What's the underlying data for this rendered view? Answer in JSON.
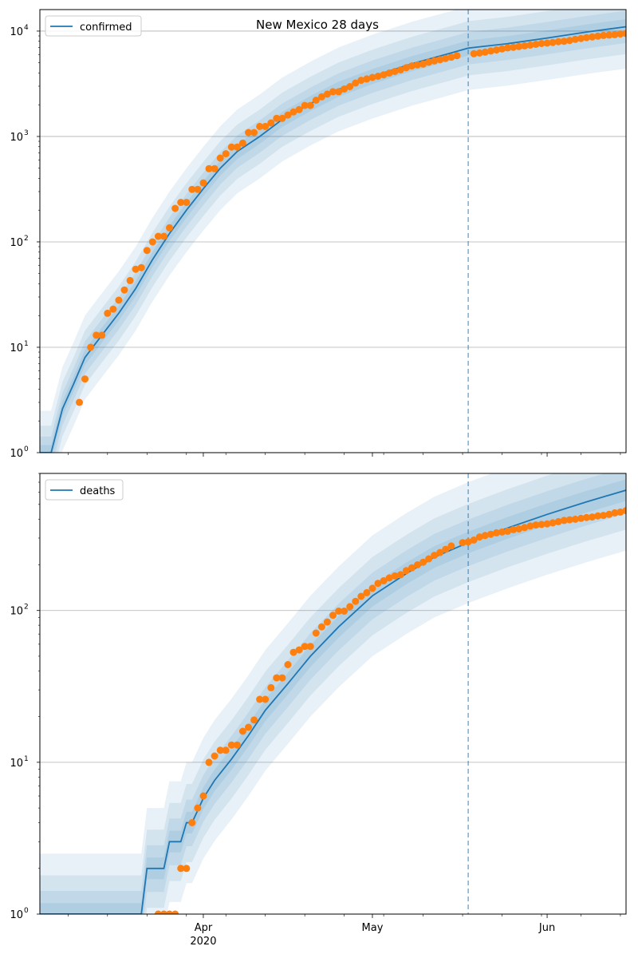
{
  "figure": {
    "title": "New Mexico 28 days"
  },
  "colors": {
    "model_line": "#1f77b4",
    "band": "#1f77b4",
    "observed_points": "#ff7f0e",
    "divider": "#1f77b4",
    "grid": "#b0b0b0"
  },
  "chart_data": [
    {
      "type": "line",
      "name": "confirmed",
      "scale": "log",
      "ylim": [
        1,
        16000
      ],
      "yticks": [
        1,
        10,
        100,
        1000,
        10000
      ],
      "ytick_labels": [
        {
          "base": "10",
          "exp": "0"
        },
        {
          "base": "10",
          "exp": "1"
        },
        {
          "base": "10",
          "exp": "2"
        },
        {
          "base": "10",
          "exp": "3"
        },
        {
          "base": "10",
          "exp": "4"
        }
      ],
      "grid": "y",
      "legend": {
        "label": "confirmed",
        "placement": "upper-left"
      },
      "xlim": [
        "2020-03-03",
        "2020-06-15"
      ],
      "xticks": [
        {
          "date": "2020-04-01",
          "label": "Apr",
          "sublabel": "2020"
        },
        {
          "date": "2020-05-01",
          "label": "May",
          "sublabel": ""
        },
        {
          "date": "2020-06-01",
          "label": "Jun",
          "sublabel": ""
        }
      ],
      "forecast_start": "2020-05-18",
      "model_line": [
        [
          "2020-03-03",
          1
        ],
        [
          "2020-03-05",
          1
        ],
        [
          "2020-03-07",
          2.6
        ],
        [
          "2020-03-09",
          4.5
        ],
        [
          "2020-03-11",
          8
        ],
        [
          "2020-03-14",
          13
        ],
        [
          "2020-03-17",
          21
        ],
        [
          "2020-03-20",
          36
        ],
        [
          "2020-03-23",
          68
        ],
        [
          "2020-03-26",
          120
        ],
        [
          "2020-03-29",
          200
        ],
        [
          "2020-04-01",
          320
        ],
        [
          "2020-04-04",
          500
        ],
        [
          "2020-04-07",
          720
        ],
        [
          "2020-04-11",
          1000
        ],
        [
          "2020-04-15",
          1450
        ],
        [
          "2020-04-20",
          2050
        ],
        [
          "2020-04-25",
          2800
        ],
        [
          "2020-05-01",
          3700
        ],
        [
          "2020-05-08",
          4900
        ],
        [
          "2020-05-14",
          6000
        ],
        [
          "2020-05-18",
          6900
        ],
        [
          "2020-05-25",
          7600
        ],
        [
          "2020-06-01",
          8600
        ],
        [
          "2020-06-08",
          9800
        ],
        [
          "2020-06-15",
          11000
        ]
      ],
      "observed": [
        [
          "2020-03-10",
          3
        ],
        [
          "2020-03-11",
          5
        ],
        [
          "2020-03-12",
          10
        ],
        [
          "2020-03-13",
          13
        ],
        [
          "2020-03-14",
          13
        ],
        [
          "2020-03-15",
          21
        ],
        [
          "2020-03-16",
          23
        ],
        [
          "2020-03-17",
          28
        ],
        [
          "2020-03-18",
          35
        ],
        [
          "2020-03-19",
          43
        ],
        [
          "2020-03-20",
          55
        ],
        [
          "2020-03-21",
          57
        ],
        [
          "2020-03-22",
          83
        ],
        [
          "2020-03-23",
          100
        ],
        [
          "2020-03-24",
          113
        ],
        [
          "2020-03-25",
          113
        ],
        [
          "2020-03-26",
          136
        ],
        [
          "2020-03-27",
          208
        ],
        [
          "2020-03-28",
          237
        ],
        [
          "2020-03-29",
          237
        ],
        [
          "2020-03-30",
          315
        ],
        [
          "2020-03-31",
          315
        ],
        [
          "2020-04-01",
          363
        ],
        [
          "2020-04-02",
          495
        ],
        [
          "2020-04-03",
          495
        ],
        [
          "2020-04-04",
          624
        ],
        [
          "2020-04-05",
          686
        ],
        [
          "2020-04-06",
          794
        ],
        [
          "2020-04-07",
          794
        ],
        [
          "2020-04-08",
          865
        ],
        [
          "2020-04-09",
          1091
        ],
        [
          "2020-04-10",
          1091
        ],
        [
          "2020-04-11",
          1245
        ],
        [
          "2020-04-12",
          1245
        ],
        [
          "2020-04-13",
          1345
        ],
        [
          "2020-04-14",
          1484
        ],
        [
          "2020-04-15",
          1484
        ],
        [
          "2020-04-16",
          1597
        ],
        [
          "2020-04-17",
          1711
        ],
        [
          "2020-04-18",
          1798
        ],
        [
          "2020-04-19",
          1971
        ],
        [
          "2020-04-20",
          1971
        ],
        [
          "2020-04-21",
          2210
        ],
        [
          "2020-04-22",
          2379
        ],
        [
          "2020-04-23",
          2521
        ],
        [
          "2020-04-24",
          2660
        ],
        [
          "2020-04-25",
          2660
        ],
        [
          "2020-04-26",
          2823
        ],
        [
          "2020-04-27",
          2974
        ],
        [
          "2020-04-28",
          3213
        ],
        [
          "2020-04-29",
          3411
        ],
        [
          "2020-04-30",
          3513
        ],
        [
          "2020-05-01",
          3630
        ],
        [
          "2020-05-02",
          3732
        ],
        [
          "2020-05-03",
          3850
        ],
        [
          "2020-05-04",
          3997
        ],
        [
          "2020-05-05",
          4138
        ],
        [
          "2020-05-06",
          4291
        ],
        [
          "2020-05-07",
          4493
        ],
        [
          "2020-05-08",
          4673
        ],
        [
          "2020-05-09",
          4778
        ],
        [
          "2020-05-10",
          4863
        ],
        [
          "2020-05-11",
          5069
        ],
        [
          "2020-05-12",
          5212
        ],
        [
          "2020-05-13",
          5364
        ],
        [
          "2020-05-14",
          5503
        ],
        [
          "2020-05-15",
          5662
        ],
        [
          "2020-05-16",
          5838
        ],
        [
          "2020-05-19",
          6096
        ],
        [
          "2020-05-20",
          6192
        ],
        [
          "2020-05-21",
          6317
        ],
        [
          "2020-05-22",
          6472
        ],
        [
          "2020-05-23",
          6625
        ],
        [
          "2020-05-24",
          6769
        ],
        [
          "2020-05-25",
          6943
        ],
        [
          "2020-05-26",
          7026
        ],
        [
          "2020-05-27",
          7130
        ],
        [
          "2020-05-28",
          7252
        ],
        [
          "2020-05-29",
          7364
        ],
        [
          "2020-05-30",
          7493
        ],
        [
          "2020-05-31",
          7624
        ],
        [
          "2020-06-01",
          7689
        ],
        [
          "2020-06-02",
          7800
        ],
        [
          "2020-06-03",
          7932
        ],
        [
          "2020-06-04",
          8008
        ],
        [
          "2020-06-05",
          8140
        ],
        [
          "2020-06-06",
          8353
        ],
        [
          "2020-06-07",
          8507
        ],
        [
          "2020-06-08",
          8672
        ],
        [
          "2020-06-09",
          8800
        ],
        [
          "2020-06-10",
          8950
        ],
        [
          "2020-06-11",
          9100
        ],
        [
          "2020-06-12",
          9180
        ],
        [
          "2020-06-13",
          9250
        ],
        [
          "2020-06-14",
          9380
        ],
        [
          "2020-06-15",
          9500
        ]
      ],
      "band_factors": [
        [
          0.85,
          1.18
        ],
        [
          0.7,
          1.42
        ],
        [
          0.55,
          1.8
        ],
        [
          0.4,
          2.5
        ]
      ]
    },
    {
      "type": "line",
      "name": "deaths",
      "scale": "log",
      "ylim": [
        1,
        800
      ],
      "yticks": [
        1,
        10,
        100
      ],
      "ytick_labels": [
        {
          "base": "10",
          "exp": "0"
        },
        {
          "base": "10",
          "exp": "1"
        },
        {
          "base": "10",
          "exp": "2"
        }
      ],
      "grid": "y",
      "legend": {
        "label": "deaths",
        "placement": "upper-left"
      },
      "xlim": [
        "2020-03-03",
        "2020-06-15"
      ],
      "xticks": [
        {
          "date": "2020-04-01",
          "label": "Apr",
          "sublabel": "2020"
        },
        {
          "date": "2020-05-01",
          "label": "May",
          "sublabel": ""
        },
        {
          "date": "2020-06-01",
          "label": "Jun",
          "sublabel": ""
        }
      ],
      "forecast_start": "2020-05-18",
      "model_line": [
        [
          "2020-03-03",
          1
        ],
        [
          "2020-03-21",
          1
        ],
        [
          "2020-03-22",
          2
        ],
        [
          "2020-03-25",
          2
        ],
        [
          "2020-03-26",
          3
        ],
        [
          "2020-03-28",
          3
        ],
        [
          "2020-03-29",
          4
        ],
        [
          "2020-03-30",
          4
        ],
        [
          "2020-04-01",
          5.8
        ],
        [
          "2020-04-03",
          7.6
        ],
        [
          "2020-04-06",
          10.5
        ],
        [
          "2020-04-09",
          15
        ],
        [
          "2020-04-12",
          22
        ],
        [
          "2020-04-16",
          33
        ],
        [
          "2020-04-20",
          50
        ],
        [
          "2020-04-25",
          78
        ],
        [
          "2020-05-01",
          125
        ],
        [
          "2020-05-07",
          175
        ],
        [
          "2020-05-12",
          225
        ],
        [
          "2020-05-18",
          280
        ],
        [
          "2020-05-25",
          350
        ],
        [
          "2020-06-01",
          430
        ],
        [
          "2020-06-08",
          520
        ],
        [
          "2020-06-15",
          620
        ]
      ],
      "observed": [
        [
          "2020-03-24",
          1
        ],
        [
          "2020-03-25",
          1
        ],
        [
          "2020-03-26",
          1
        ],
        [
          "2020-03-27",
          1
        ],
        [
          "2020-03-28",
          2
        ],
        [
          "2020-03-29",
          2
        ],
        [
          "2020-03-30",
          4
        ],
        [
          "2020-03-31",
          5
        ],
        [
          "2020-04-01",
          6
        ],
        [
          "2020-04-02",
          10
        ],
        [
          "2020-04-03",
          11
        ],
        [
          "2020-04-04",
          12
        ],
        [
          "2020-04-05",
          12
        ],
        [
          "2020-04-06",
          13
        ],
        [
          "2020-04-07",
          13
        ],
        [
          "2020-04-08",
          16
        ],
        [
          "2020-04-09",
          17
        ],
        [
          "2020-04-10",
          19
        ],
        [
          "2020-04-11",
          26
        ],
        [
          "2020-04-12",
          26
        ],
        [
          "2020-04-13",
          31
        ],
        [
          "2020-04-14",
          36
        ],
        [
          "2020-04-15",
          36
        ],
        [
          "2020-04-16",
          44
        ],
        [
          "2020-04-17",
          53
        ],
        [
          "2020-04-18",
          55
        ],
        [
          "2020-04-19",
          58
        ],
        [
          "2020-04-20",
          58
        ],
        [
          "2020-04-21",
          71
        ],
        [
          "2020-04-22",
          78
        ],
        [
          "2020-04-23",
          84
        ],
        [
          "2020-04-24",
          93
        ],
        [
          "2020-04-25",
          99
        ],
        [
          "2020-04-26",
          99
        ],
        [
          "2020-04-27",
          106
        ],
        [
          "2020-04-28",
          115
        ],
        [
          "2020-04-29",
          124
        ],
        [
          "2020-04-30",
          131
        ],
        [
          "2020-05-01",
          140
        ],
        [
          "2020-05-02",
          151
        ],
        [
          "2020-05-03",
          157
        ],
        [
          "2020-05-04",
          164
        ],
        [
          "2020-05-05",
          169
        ],
        [
          "2020-05-06",
          172
        ],
        [
          "2020-05-07",
          183
        ],
        [
          "2020-05-08",
          191
        ],
        [
          "2020-05-09",
          200
        ],
        [
          "2020-05-10",
          208
        ],
        [
          "2020-05-11",
          219
        ],
        [
          "2020-05-12",
          231
        ],
        [
          "2020-05-13",
          241
        ],
        [
          "2020-05-14",
          253
        ],
        [
          "2020-05-15",
          266
        ],
        [
          "2020-05-17",
          280
        ],
        [
          "2020-05-18",
          283
        ],
        [
          "2020-05-19",
          291
        ],
        [
          "2020-05-20",
          305
        ],
        [
          "2020-05-21",
          312
        ],
        [
          "2020-05-22",
          318
        ],
        [
          "2020-05-23",
          325
        ],
        [
          "2020-05-24",
          329
        ],
        [
          "2020-05-25",
          333
        ],
        [
          "2020-05-26",
          341
        ],
        [
          "2020-05-27",
          345
        ],
        [
          "2020-05-28",
          352
        ],
        [
          "2020-05-29",
          360
        ],
        [
          "2020-05-30",
          366
        ],
        [
          "2020-05-31",
          369
        ],
        [
          "2020-06-01",
          372
        ],
        [
          "2020-06-02",
          378
        ],
        [
          "2020-06-03",
          385
        ],
        [
          "2020-06-04",
          392
        ],
        [
          "2020-06-05",
          396
        ],
        [
          "2020-06-06",
          399
        ],
        [
          "2020-06-07",
          405
        ],
        [
          "2020-06-08",
          410
        ],
        [
          "2020-06-09",
          413
        ],
        [
          "2020-06-10",
          420
        ],
        [
          "2020-06-11",
          423
        ],
        [
          "2020-06-12",
          430
        ],
        [
          "2020-06-13",
          440
        ],
        [
          "2020-06-14",
          445
        ],
        [
          "2020-06-15",
          455
        ]
      ],
      "band_factors": [
        [
          0.85,
          1.18
        ],
        [
          0.7,
          1.42
        ],
        [
          0.55,
          1.8
        ],
        [
          0.4,
          2.5
        ]
      ]
    }
  ]
}
